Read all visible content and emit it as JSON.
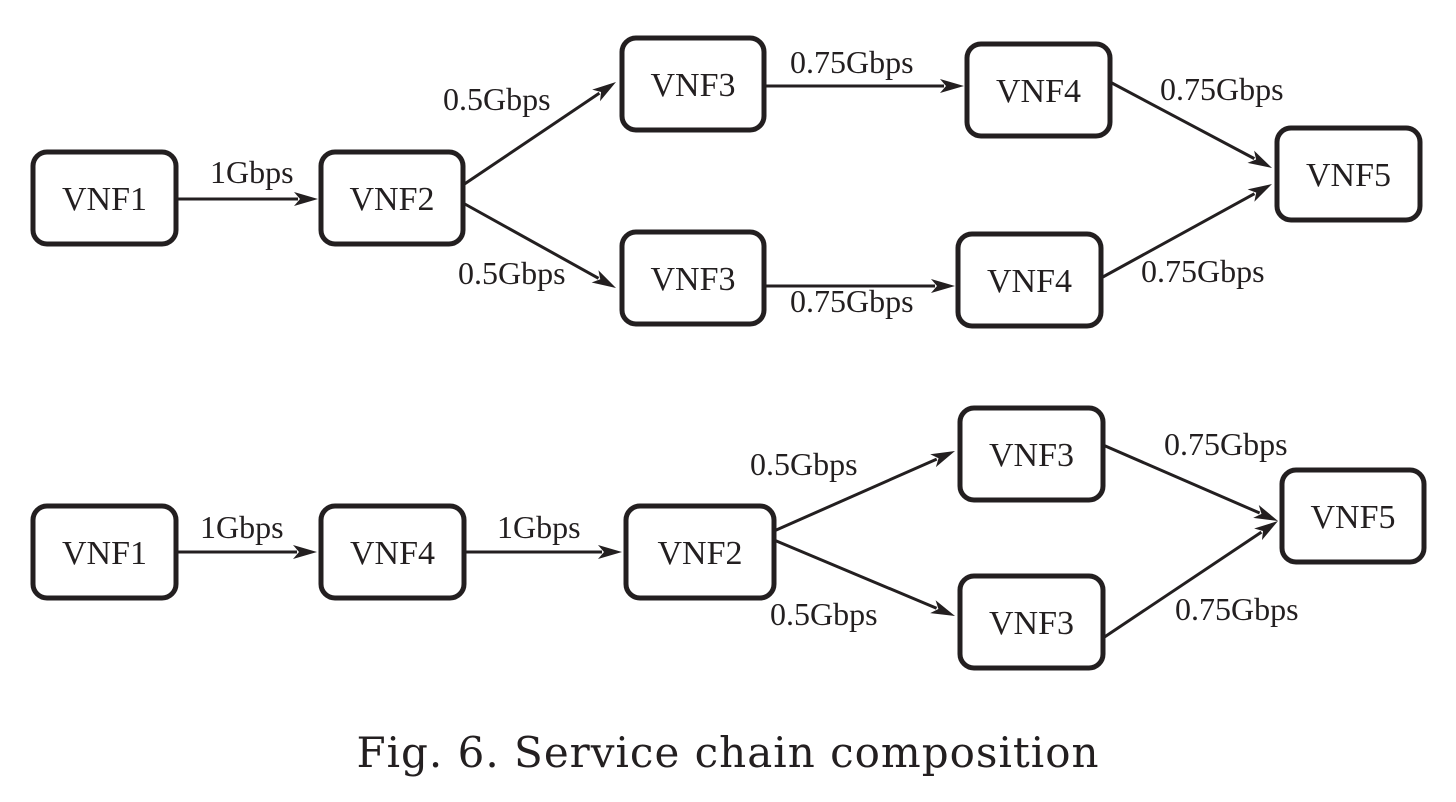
{
  "diagrams": [
    {
      "nodes": [
        {
          "id": "a1",
          "label": "VNF1"
        },
        {
          "id": "a2",
          "label": "VNF2"
        },
        {
          "id": "a3",
          "label": "VNF3"
        },
        {
          "id": "a4",
          "label": "VNF4"
        },
        {
          "id": "a5",
          "label": "VNF5"
        },
        {
          "id": "a6",
          "label": "VNF3"
        },
        {
          "id": "a7",
          "label": "VNF4"
        }
      ],
      "edges": [
        {
          "from": "a1",
          "to": "a2",
          "label": "1Gbps"
        },
        {
          "from": "a2",
          "to": "a3",
          "label": "0.5Gbps"
        },
        {
          "from": "a2",
          "to": "a6",
          "label": "0.5Gbps"
        },
        {
          "from": "a3",
          "to": "a4",
          "label": "0.75Gbps"
        },
        {
          "from": "a6",
          "to": "a7",
          "label": "0.75Gbps"
        },
        {
          "from": "a4",
          "to": "a5",
          "label": "0.75Gbps"
        },
        {
          "from": "a7",
          "to": "a5",
          "label": "0.75Gbps"
        }
      ]
    },
    {
      "nodes": [
        {
          "id": "b1",
          "label": "VNF1"
        },
        {
          "id": "b2",
          "label": "VNF4"
        },
        {
          "id": "b3",
          "label": "VNF2"
        },
        {
          "id": "b4",
          "label": "VNF3"
        },
        {
          "id": "b5",
          "label": "VNF3"
        },
        {
          "id": "b6",
          "label": "VNF5"
        }
      ],
      "edges": [
        {
          "from": "b1",
          "to": "b2",
          "label": "1Gbps"
        },
        {
          "from": "b2",
          "to": "b3",
          "label": "1Gbps"
        },
        {
          "from": "b3",
          "to": "b4",
          "label": "0.5Gbps"
        },
        {
          "from": "b3",
          "to": "b5",
          "label": "0.5Gbps"
        },
        {
          "from": "b4",
          "to": "b6",
          "label": "0.75Gbps"
        },
        {
          "from": "b5",
          "to": "b6",
          "label": "0.75Gbps"
        }
      ]
    }
  ],
  "caption": "Fig. 6. Service chain composition"
}
